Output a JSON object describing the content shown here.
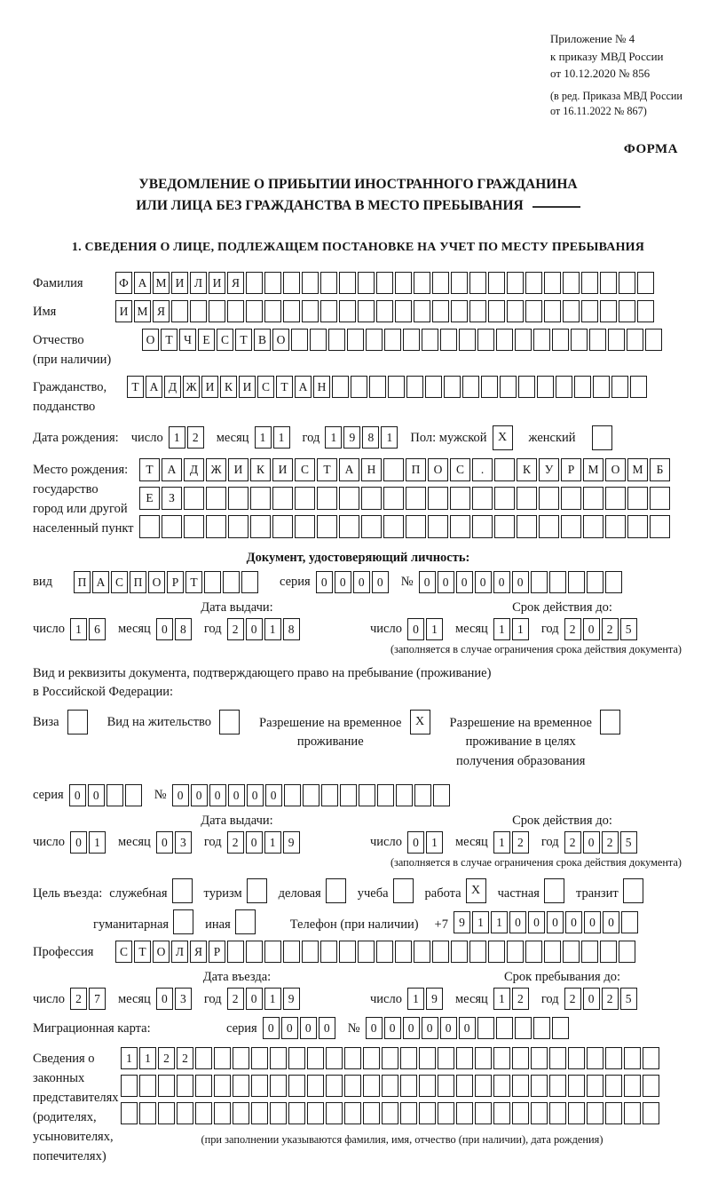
{
  "colors": {
    "ink": "#191919",
    "paper": "#ffffff"
  },
  "labels": {
    "day": "число",
    "month": "месяц",
    "year": "год",
    "seriya": "серия",
    "num": "№"
  },
  "header": {
    "appendix_lines": [
      "Приложение № 4",
      "к приказу МВД России",
      "от 10.12.2020 № 856"
    ],
    "edition_lines": [
      "(в ред. Приказа МВД России",
      "от 16.11.2022 № 867)"
    ],
    "form_label": "ФОРМА"
  },
  "title": {
    "line1": "УВЕДОМЛЕНИЕ О ПРИБЫТИИ ИНОСТРАННОГО ГРАЖДАНИНА",
    "line2": "ИЛИ ЛИЦА БЕЗ ГРАЖДАНСТВА В МЕСТО ПРЕБЫВАНИЯ"
  },
  "section1": {
    "heading": "1. СВЕДЕНИЯ О ЛИЦЕ, ПОДЛЕЖАЩЕМ ПОСТАНОВКЕ НА УЧЕТ ПО МЕСТУ ПРЕБЫВАНИЯ"
  },
  "fields": {
    "surname": {
      "label": "Фамилия",
      "value": "ФАМИЛИЯ",
      "length": 29
    },
    "given_name": {
      "label": "Имя",
      "value": "ИМЯ",
      "length": 29
    },
    "patronymic": {
      "label1": "Отчество",
      "label2": "(при наличии)",
      "value": "ОТЧЕСТВО",
      "length": 28
    },
    "citizenship": {
      "label1": "Гражданство,",
      "label2": "подданство",
      "value": "ТАДЖИКИСТАН",
      "length": 28
    }
  },
  "birth": {
    "label": "Дата рождения:",
    "day": {
      "value": "12",
      "length": 2
    },
    "month": {
      "value": "11",
      "length": 2
    },
    "year": {
      "value": "1981",
      "length": 4
    }
  },
  "gender": {
    "label_male": "Пол: мужской",
    "male_mark": "X",
    "label_female": "женский",
    "female_mark": ""
  },
  "birthplace": {
    "labels": [
      "Место рождения:",
      "государство",
      "город или другой",
      "населенный пункт"
    ],
    "rows": [
      {
        "value": "ТАДЖИКИСТАН ПОС. КУРМОМБ",
        "length": 24
      },
      {
        "value": "ЕЗ",
        "length": 24
      },
      {
        "value": "",
        "length": 24
      }
    ]
  },
  "identity_doc": {
    "heading": "Документ, удостоверяющий личность:",
    "vid_label": "вид",
    "vid": {
      "value": "ПАСПОРТ",
      "length": 10
    },
    "seriya": {
      "value": "0000",
      "length": 4
    },
    "number": {
      "value": "000000",
      "length": 11
    },
    "issue_label": "Дата выдачи:",
    "valid_label": "Срок действия до:",
    "issue": {
      "day": {
        "value": "16",
        "length": 2
      },
      "month": {
        "value": "08",
        "length": 2
      },
      "year": {
        "value": "2018",
        "length": 4
      }
    },
    "valid": {
      "day": {
        "value": "01",
        "length": 2
      },
      "month": {
        "value": "11",
        "length": 2
      },
      "year": {
        "value": "2025",
        "length": 4
      }
    },
    "footnote": "(заполняется в случае ограничения срока действия документа)"
  },
  "residence_doc": {
    "intro1": "Вид и реквизиты документа, подтверждающего право на пребывание (проживание)",
    "intro2": "в Российской Федерации:",
    "options": [
      {
        "label": "Виза",
        "mark": ""
      },
      {
        "label": "Вид на жительство",
        "mark": ""
      },
      {
        "lines": [
          "Разрешение на временное",
          "проживание"
        ],
        "mark": "X"
      },
      {
        "lines": [
          "Разрешение на временное",
          "проживание в целях",
          "получения образования"
        ],
        "mark": ""
      }
    ],
    "seriya": {
      "value": "00",
      "length": 4
    },
    "number": {
      "value": "000000",
      "length": 15
    },
    "issue_label": "Дата выдачи:",
    "valid_label": "Срок действия до:",
    "issue": {
      "day": {
        "value": "01",
        "length": 2
      },
      "month": {
        "value": "03",
        "length": 2
      },
      "year": {
        "value": "2019",
        "length": 4
      }
    },
    "valid": {
      "day": {
        "value": "01",
        "length": 2
      },
      "month": {
        "value": "12",
        "length": 2
      },
      "year": {
        "value": "2025",
        "length": 4
      }
    },
    "footnote": "(заполняется в случае ограничения срока действия документа)"
  },
  "visit": {
    "label": "Цель въезда:",
    "options": [
      {
        "label": "служебная",
        "mark": ""
      },
      {
        "label": "туризм",
        "mark": ""
      },
      {
        "label": "деловая",
        "mark": ""
      },
      {
        "label": "учеба",
        "mark": ""
      },
      {
        "label": "работа",
        "mark": "X"
      },
      {
        "label": "частная",
        "mark": ""
      },
      {
        "label": "транзит",
        "mark": ""
      }
    ],
    "options2": [
      {
        "label": "гуманитарная",
        "mark": ""
      },
      {
        "label": "иная",
        "mark": ""
      }
    ],
    "phone_label": "Телефон (при наличии)",
    "phone_prefix": "+7",
    "phone": {
      "value": "911000000",
      "length": 10
    }
  },
  "profession": {
    "label": "Профессия",
    "value": "СТОЛЯР",
    "length": 28
  },
  "entry": {
    "date_label": "Дата въезда:",
    "stay_label": "Срок пребывания до:",
    "date": {
      "day": {
        "value": "27",
        "length": 2
      },
      "month": {
        "value": "03",
        "length": 2
      },
      "year": {
        "value": "2019",
        "length": 4
      }
    },
    "stay": {
      "day": {
        "value": "19",
        "length": 2
      },
      "month": {
        "value": "12",
        "length": 2
      },
      "year": {
        "value": "2025",
        "length": 4
      }
    }
  },
  "migration_card": {
    "label": "Миграционная карта:",
    "seriya": {
      "value": "0000",
      "length": 4
    },
    "number": {
      "value": "000000",
      "length": 11
    }
  },
  "representatives": {
    "labels": [
      "Сведения о",
      "законных",
      "представителях",
      "(родителях,",
      "усыновителях,",
      "попечителях)"
    ],
    "rows": [
      {
        "value": "1122",
        "length": 29
      },
      {
        "value": "",
        "length": 29
      },
      {
        "value": "",
        "length": 29
      }
    ],
    "footnote": "(при заполнении указываются фамилия, имя, отчество (при наличии), дата рождения)"
  }
}
